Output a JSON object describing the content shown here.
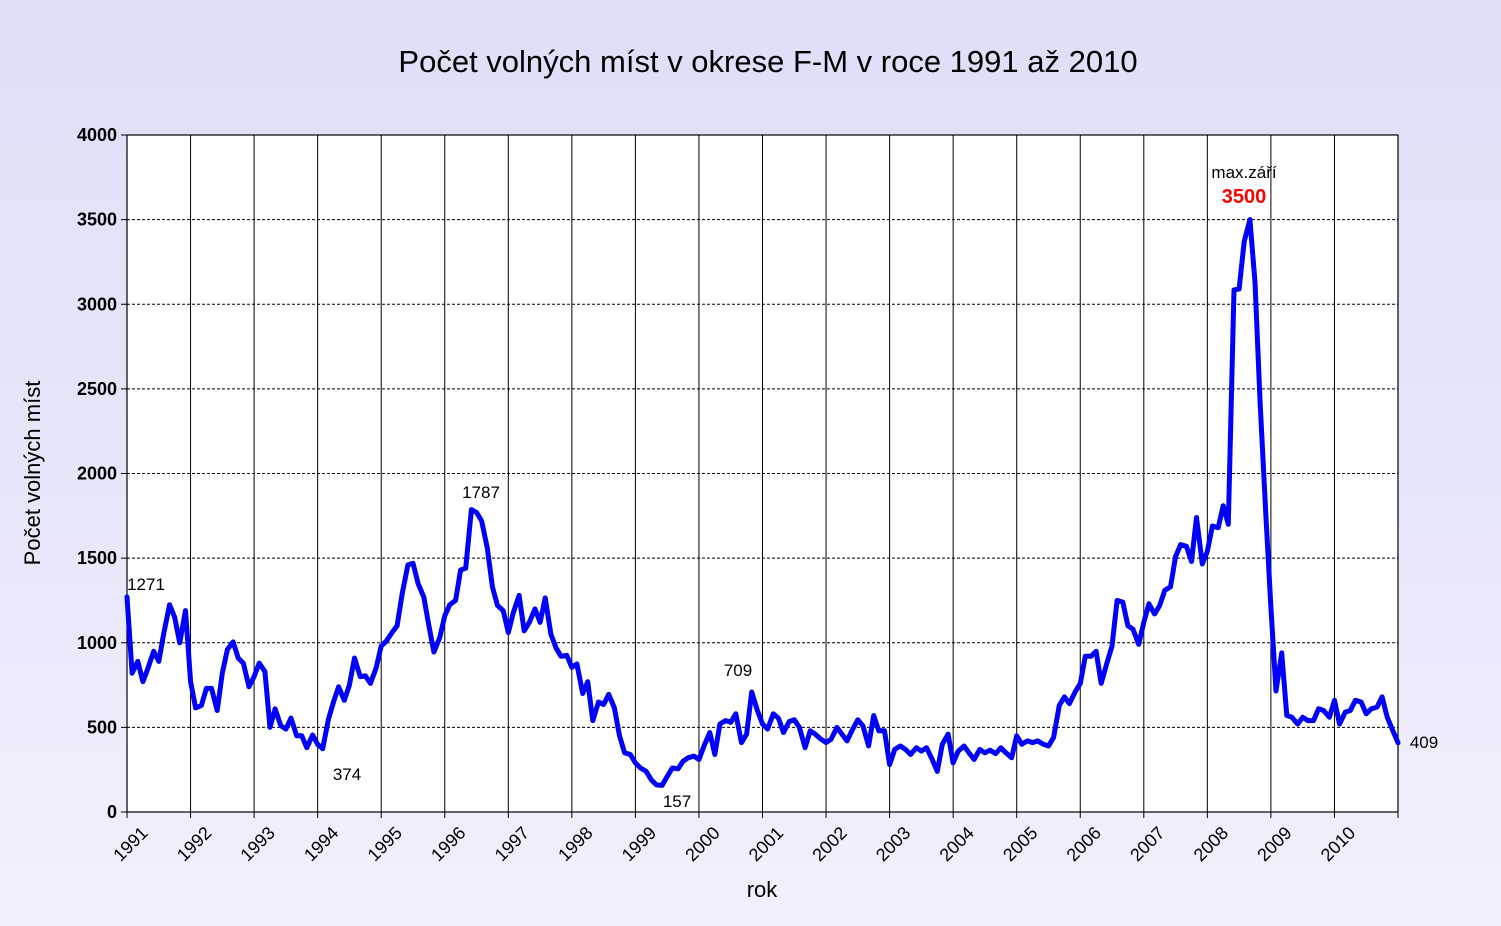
{
  "chart_data": {
    "type": "line",
    "title": "Počet volných míst v okrese F-M v roce 1991 až 2010",
    "xlabel": "rok",
    "ylabel": "Počet volných míst",
    "ylim": [
      0,
      4000
    ],
    "yticks": [
      "0",
      "500",
      "1000",
      "1500",
      "2000",
      "2500",
      "3000",
      "3500",
      "4000"
    ],
    "xlim": [
      1991,
      2011
    ],
    "xticks": [
      "1991",
      "1992",
      "1993",
      "1994",
      "1995",
      "1996",
      "1997",
      "1998",
      "1999",
      "2000",
      "2001",
      "2002",
      "2003",
      "2004",
      "2005",
      "2006",
      "2007",
      "2008",
      "2009",
      "2010"
    ],
    "grid": "horizontal dashed + vertical year lines",
    "legend": "none",
    "series": [
      {
        "color": "#0000ff",
        "points": [
          [
            1991.0,
            1271
          ],
          [
            1991.08,
            820
          ],
          [
            1991.17,
            890
          ],
          [
            1991.25,
            770
          ],
          [
            1991.33,
            850
          ],
          [
            1991.42,
            950
          ],
          [
            1991.5,
            890
          ],
          [
            1991.58,
            1060
          ],
          [
            1991.67,
            1225
          ],
          [
            1991.75,
            1150
          ],
          [
            1991.83,
            1000
          ],
          [
            1991.92,
            1190
          ],
          [
            1992.0,
            770
          ],
          [
            1992.08,
            615
          ],
          [
            1992.17,
            630
          ],
          [
            1992.25,
            730
          ],
          [
            1992.33,
            730
          ],
          [
            1992.42,
            600
          ],
          [
            1992.5,
            820
          ],
          [
            1992.58,
            960
          ],
          [
            1992.67,
            1005
          ],
          [
            1992.75,
            910
          ],
          [
            1992.83,
            880
          ],
          [
            1992.92,
            740
          ],
          [
            1993.0,
            800
          ],
          [
            1993.08,
            880
          ],
          [
            1993.17,
            830
          ],
          [
            1993.25,
            500
          ],
          [
            1993.33,
            610
          ],
          [
            1993.42,
            510
          ],
          [
            1993.5,
            490
          ],
          [
            1993.58,
            555
          ],
          [
            1993.67,
            450
          ],
          [
            1993.75,
            450
          ],
          [
            1993.83,
            380
          ],
          [
            1993.92,
            455
          ],
          [
            1994.0,
            400
          ],
          [
            1994.08,
            374
          ],
          [
            1994.17,
            550
          ],
          [
            1994.25,
            650
          ],
          [
            1994.33,
            740
          ],
          [
            1994.42,
            660
          ],
          [
            1994.5,
            750
          ],
          [
            1994.58,
            910
          ],
          [
            1994.67,
            800
          ],
          [
            1994.75,
            805
          ],
          [
            1994.83,
            760
          ],
          [
            1994.92,
            850
          ],
          [
            1995.0,
            980
          ],
          [
            1995.08,
            1010
          ],
          [
            1995.17,
            1060
          ],
          [
            1995.25,
            1100
          ],
          [
            1995.33,
            1290
          ],
          [
            1995.42,
            1460
          ],
          [
            1995.5,
            1470
          ],
          [
            1995.58,
            1350
          ],
          [
            1995.67,
            1270
          ],
          [
            1995.75,
            1100
          ],
          [
            1995.83,
            945
          ],
          [
            1995.92,
            1030
          ],
          [
            1996.0,
            1160
          ],
          [
            1996.08,
            1225
          ],
          [
            1996.17,
            1250
          ],
          [
            1996.25,
            1430
          ],
          [
            1996.33,
            1440
          ],
          [
            1996.42,
            1787
          ],
          [
            1996.5,
            1770
          ],
          [
            1996.58,
            1720
          ],
          [
            1996.67,
            1560
          ],
          [
            1996.75,
            1330
          ],
          [
            1996.83,
            1220
          ],
          [
            1996.92,
            1190
          ],
          [
            1997.0,
            1060
          ],
          [
            1997.08,
            1180
          ],
          [
            1997.17,
            1280
          ],
          [
            1997.25,
            1070
          ],
          [
            1997.33,
            1120
          ],
          [
            1997.42,
            1200
          ],
          [
            1997.5,
            1120
          ],
          [
            1997.58,
            1265
          ],
          [
            1997.67,
            1050
          ],
          [
            1997.75,
            970
          ],
          [
            1997.83,
            920
          ],
          [
            1997.92,
            925
          ],
          [
            1998.0,
            855
          ],
          [
            1998.08,
            875
          ],
          [
            1998.17,
            700
          ],
          [
            1998.25,
            770
          ],
          [
            1998.33,
            540
          ],
          [
            1998.42,
            650
          ],
          [
            1998.5,
            635
          ],
          [
            1998.58,
            695
          ],
          [
            1998.67,
            615
          ],
          [
            1998.75,
            450
          ],
          [
            1998.83,
            350
          ],
          [
            1998.92,
            340
          ],
          [
            1999.0,
            290
          ],
          [
            1999.08,
            260
          ],
          [
            1999.17,
            240
          ],
          [
            1999.25,
            190
          ],
          [
            1999.33,
            160
          ],
          [
            1999.42,
            157
          ],
          [
            1999.5,
            210
          ],
          [
            1999.58,
            260
          ],
          [
            1999.67,
            255
          ],
          [
            1999.75,
            300
          ],
          [
            1999.83,
            320
          ],
          [
            1999.92,
            330
          ],
          [
            2000.0,
            310
          ],
          [
            2000.08,
            390
          ],
          [
            2000.17,
            470
          ],
          [
            2000.25,
            340
          ],
          [
            2000.33,
            520
          ],
          [
            2000.42,
            540
          ],
          [
            2000.5,
            530
          ],
          [
            2000.58,
            580
          ],
          [
            2000.67,
            410
          ],
          [
            2000.75,
            460
          ],
          [
            2000.83,
            709
          ],
          [
            2000.92,
            600
          ],
          [
            2001.0,
            520
          ],
          [
            2001.08,
            490
          ],
          [
            2001.17,
            580
          ],
          [
            2001.25,
            555
          ],
          [
            2001.33,
            470
          ],
          [
            2001.42,
            535
          ],
          [
            2001.5,
            545
          ],
          [
            2001.58,
            500
          ],
          [
            2001.67,
            380
          ],
          [
            2001.75,
            480
          ],
          [
            2001.83,
            460
          ],
          [
            2001.92,
            430
          ],
          [
            2002.0,
            410
          ],
          [
            2002.08,
            430
          ],
          [
            2002.17,
            500
          ],
          [
            2002.25,
            460
          ],
          [
            2002.33,
            420
          ],
          [
            2002.42,
            490
          ],
          [
            2002.5,
            545
          ],
          [
            2002.58,
            510
          ],
          [
            2002.67,
            390
          ],
          [
            2002.75,
            570
          ],
          [
            2002.83,
            480
          ],
          [
            2002.92,
            480
          ],
          [
            2003.0,
            280
          ],
          [
            2003.08,
            370
          ],
          [
            2003.17,
            390
          ],
          [
            2003.25,
            370
          ],
          [
            2003.33,
            340
          ],
          [
            2003.42,
            380
          ],
          [
            2003.5,
            360
          ],
          [
            2003.58,
            380
          ],
          [
            2003.67,
            310
          ],
          [
            2003.75,
            240
          ],
          [
            2003.83,
            400
          ],
          [
            2003.92,
            460
          ],
          [
            2004.0,
            290
          ],
          [
            2004.08,
            360
          ],
          [
            2004.17,
            390
          ],
          [
            2004.25,
            350
          ],
          [
            2004.33,
            310
          ],
          [
            2004.42,
            370
          ],
          [
            2004.5,
            350
          ],
          [
            2004.58,
            365
          ],
          [
            2004.67,
            345
          ],
          [
            2004.75,
            380
          ],
          [
            2004.83,
            350
          ],
          [
            2004.92,
            320
          ],
          [
            2005.0,
            450
          ],
          [
            2005.08,
            400
          ],
          [
            2005.17,
            420
          ],
          [
            2005.25,
            410
          ],
          [
            2005.33,
            420
          ],
          [
            2005.42,
            400
          ],
          [
            2005.5,
            390
          ],
          [
            2005.58,
            440
          ],
          [
            2005.67,
            630
          ],
          [
            2005.75,
            680
          ],
          [
            2005.83,
            640
          ],
          [
            2005.92,
            710
          ],
          [
            2006.0,
            760
          ],
          [
            2006.08,
            920
          ],
          [
            2006.17,
            920
          ],
          [
            2006.25,
            950
          ],
          [
            2006.33,
            760
          ],
          [
            2006.42,
            880
          ],
          [
            2006.5,
            980
          ],
          [
            2006.58,
            1250
          ],
          [
            2006.67,
            1240
          ],
          [
            2006.75,
            1100
          ],
          [
            2006.83,
            1080
          ],
          [
            2006.92,
            990
          ],
          [
            2007.0,
            1120
          ],
          [
            2007.08,
            1230
          ],
          [
            2007.17,
            1170
          ],
          [
            2007.25,
            1220
          ],
          [
            2007.33,
            1310
          ],
          [
            2007.42,
            1330
          ],
          [
            2007.5,
            1510
          ],
          [
            2007.58,
            1580
          ],
          [
            2007.67,
            1570
          ],
          [
            2007.75,
            1480
          ],
          [
            2007.83,
            1740
          ],
          [
            2007.92,
            1465
          ],
          [
            2008.0,
            1540
          ],
          [
            2008.08,
            1690
          ],
          [
            2008.17,
            1680
          ],
          [
            2008.25,
            1810
          ],
          [
            2008.33,
            1700
          ],
          [
            2008.42,
            3085
          ],
          [
            2008.5,
            3090
          ],
          [
            2008.58,
            3370
          ],
          [
            2008.67,
            3500
          ],
          [
            2008.75,
            3130
          ],
          [
            2008.83,
            2420
          ],
          [
            2008.92,
            1760
          ],
          [
            2009.0,
            1210
          ],
          [
            2009.08,
            715
          ],
          [
            2009.17,
            940
          ],
          [
            2009.25,
            570
          ],
          [
            2009.33,
            560
          ],
          [
            2009.42,
            520
          ],
          [
            2009.5,
            560
          ],
          [
            2009.58,
            540
          ],
          [
            2009.67,
            540
          ],
          [
            2009.75,
            610
          ],
          [
            2009.83,
            600
          ],
          [
            2009.92,
            560
          ],
          [
            2010.0,
            660
          ],
          [
            2010.08,
            520
          ],
          [
            2010.17,
            590
          ],
          [
            2010.25,
            600
          ],
          [
            2010.33,
            660
          ],
          [
            2010.42,
            650
          ],
          [
            2010.5,
            580
          ],
          [
            2010.58,
            610
          ],
          [
            2010.67,
            620
          ],
          [
            2010.75,
            680
          ],
          [
            2010.83,
            560
          ],
          [
            2010.92,
            480
          ],
          [
            2011.0,
            409
          ]
        ]
      }
    ],
    "annotations": {
      "start": "1271",
      "min_1994": "374",
      "peak_1996": "1787",
      "min_1999": "157",
      "peak_2000": "709",
      "max_label": "max.září",
      "max_value": "3500",
      "end": "409"
    }
  }
}
